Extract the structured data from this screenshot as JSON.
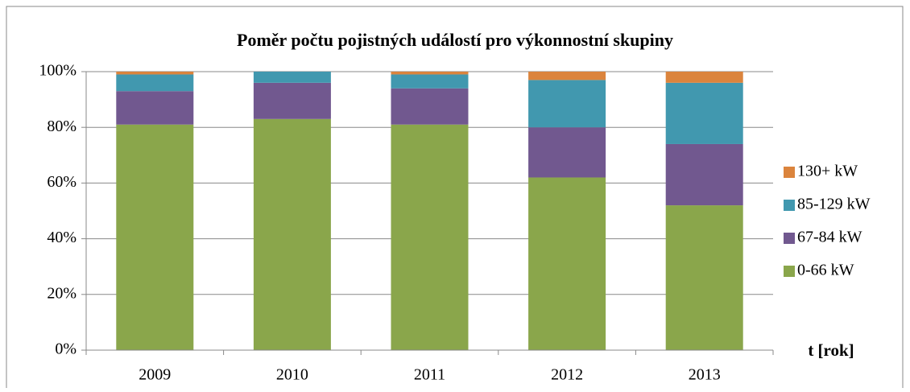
{
  "chart_data": {
    "type": "stacked_bar",
    "title": "Poměr počtu pojistných událostí pro výkonnostní skupiny",
    "x_label": "t [rok]",
    "categories": [
      "2009",
      "2010",
      "2011",
      "2012",
      "2013"
    ],
    "series": [
      {
        "name": "0-66 kW",
        "color": "#8aa64b",
        "values": [
          81,
          83,
          81,
          62,
          52
        ]
      },
      {
        "name": "67-84 kW",
        "color": "#71588f",
        "values": [
          12,
          13,
          13,
          18,
          22
        ]
      },
      {
        "name": "85-129 kW",
        "color": "#4198af",
        "values": [
          6,
          4,
          5,
          17,
          22
        ]
      },
      {
        "name": "130+ kW",
        "color": "#db843d",
        "values": [
          1,
          0,
          1,
          3,
          4
        ]
      }
    ],
    "ylim": [
      0,
      100
    ],
    "yticks": [
      {
        "value": 0,
        "label": "0%"
      },
      {
        "value": 20,
        "label": "20%"
      },
      {
        "value": 40,
        "label": "40%"
      },
      {
        "value": 60,
        "label": "60%"
      },
      {
        "value": 80,
        "label": "80%"
      },
      {
        "value": 100,
        "label": "100%"
      }
    ],
    "grid": true,
    "legend": "right"
  }
}
